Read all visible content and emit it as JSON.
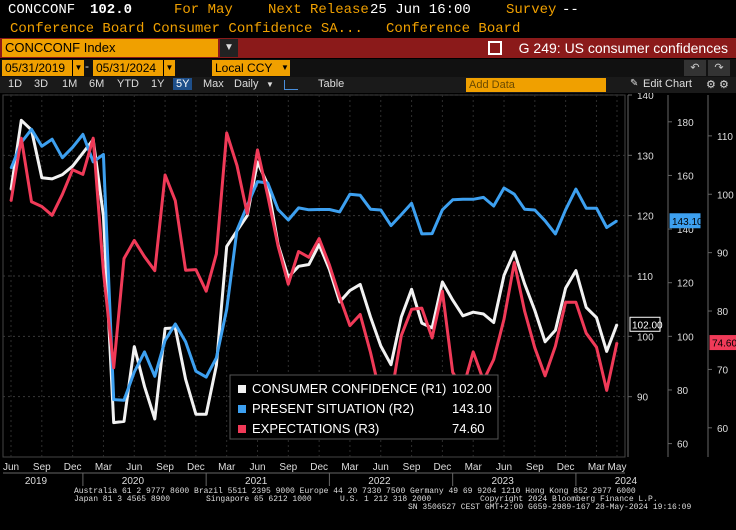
{
  "header": {
    "ticker": "CONCCONF",
    "last_value": "102.0",
    "for_label": "For May",
    "next_release_label": "Next Release",
    "next_release_value": "25 Jun 16:00",
    "survey_label": "Survey",
    "survey_value": "--",
    "series_name": "Conference Board Consumer Confidence SA...",
    "source": "Conference Board"
  },
  "security_bar": {
    "security": "CONCCONF Index",
    "graph_title": "G 249: US consumer confidences",
    "colors": {
      "bar": "#8b1a1a",
      "input": "#f0a000"
    }
  },
  "date_bar": {
    "start_date": "05/31/2019",
    "end_date": "05/31/2024",
    "currency": "Local CCY",
    "icons": [
      "undo-icon",
      "redo-icon"
    ]
  },
  "toolbar": {
    "ranges": [
      "1D",
      "3D",
      "1M",
      "6M",
      "YTD",
      "1Y",
      "5Y",
      "Max"
    ],
    "selected_range": "5Y",
    "frequency": "Daily",
    "table": "Table",
    "add_data": "Add Data",
    "edit_chart": "Edit Chart",
    "icons": [
      "chart-type-icon",
      "edit-icon",
      "gear-icon"
    ]
  },
  "chart_data": {
    "type": "line",
    "x_months": [
      "Jun 2019",
      "Jul 2019",
      "Aug 2019",
      "Sep 2019",
      "Oct 2019",
      "Nov 2019",
      "Dec 2019",
      "Jan 2020",
      "Feb 2020",
      "Mar 2020",
      "Apr 2020",
      "May 2020",
      "Jun 2020",
      "Jul 2020",
      "Aug 2020",
      "Sep 2020",
      "Oct 2020",
      "Nov 2020",
      "Dec 2020",
      "Jan 2021",
      "Feb 2021",
      "Mar 2021",
      "Apr 2021",
      "May 2021",
      "Jun 2021",
      "Jul 2021",
      "Aug 2021",
      "Sep 2021",
      "Oct 2021",
      "Nov 2021",
      "Dec 2021",
      "Jan 2022",
      "Feb 2022",
      "Mar 2022",
      "Apr 2022",
      "May 2022",
      "Jun 2022",
      "Jul 2022",
      "Aug 2022",
      "Sep 2022",
      "Oct 2022",
      "Nov 2022",
      "Dec 2022",
      "Jan 2023",
      "Feb 2023",
      "Mar 2023",
      "Apr 2023",
      "May 2023",
      "Jun 2023",
      "Jul 2023",
      "Aug 2023",
      "Sep 2023",
      "Oct 2023",
      "Nov 2023",
      "Dec 2023",
      "Jan 2024",
      "Feb 2024",
      "Mar 2024",
      "Apr 2024",
      "May 2024"
    ],
    "x_tick_labels": [
      "Jun",
      "Sep",
      "Dec",
      "Mar",
      "Jun",
      "Sep",
      "Dec",
      "Mar",
      "Jun",
      "Sep",
      "Dec",
      "Mar",
      "Jun",
      "Sep",
      "Dec",
      "Mar",
      "Jun",
      "Sep",
      "Dec",
      "Mar",
      "May"
    ],
    "year_labels": [
      "2019",
      "2020",
      "2021",
      "2022",
      "2023",
      "2024"
    ],
    "series": [
      {
        "name": "CONSUMER CONFIDENCE (R1)",
        "color": "#f2f2f2",
        "axis": "R1",
        "last": "102.00",
        "values": [
          124.3,
          135.8,
          134.2,
          126.3,
          126.1,
          126.8,
          128.2,
          130.4,
          132.6,
          120.0,
          85.7,
          85.9,
          98.3,
          91.7,
          86.3,
          101.3,
          101.4,
          92.9,
          87.1,
          87.1,
          95.2,
          114.9,
          117.5,
          120.0,
          128.9,
          125.1,
          115.2,
          109.8,
          111.6,
          111.9,
          115.2,
          111.1,
          105.7,
          107.6,
          108.6,
          103.2,
          98.4,
          95.3,
          103.2,
          107.8,
          102.2,
          101.4,
          109.0,
          106.0,
          103.4,
          104.0,
          103.7,
          102.3,
          110.1,
          114.0,
          108.7,
          104.3,
          99.1,
          101.0,
          108.0,
          110.9,
          104.8,
          103.1,
          97.5,
          102.0
        ]
      },
      {
        "name": "PRESENT SITUATION (R2)",
        "color": "#3da0f0",
        "axis": "R2",
        "last": "143.10",
        "values": [
          162.6,
          172.3,
          177.2,
          170.9,
          173.5,
          166.6,
          170.5,
          175.3,
          165.1,
          167.8,
          76.4,
          76.2,
          86.7,
          94.2,
          85.1,
          98.5,
          104.6,
          98.0,
          87.0,
          84.8,
          92.0,
          110.1,
          139.6,
          148.7,
          157.7,
          157.2,
          147.3,
          143.4,
          147.9,
          147.2,
          147.3,
          147.3,
          146.4,
          153.0,
          152.6,
          147.4,
          147.1,
          141.3,
          145.4,
          149.6,
          138.2,
          138.3,
          147.2,
          150.9,
          151.1,
          151.1,
          151.8,
          148.6,
          155.3,
          153.0,
          147.4,
          147.1,
          143.1,
          138.2,
          147.2,
          154.9,
          147.8,
          147.8,
          140.6,
          143.1
        ]
      },
      {
        "name": "EXPECTATIONS (R3)",
        "color": "#f03a58",
        "axis": "R3",
        "last": "74.60",
        "values": [
          98.8,
          109.6,
          98.7,
          97.9,
          96.4,
          100.0,
          104.2,
          103.4,
          109.6,
          86.8,
          70.3,
          89.0,
          92.1,
          89.3,
          86.9,
          103.3,
          98.9,
          87.0,
          87.1,
          83.4,
          89.8,
          110.5,
          104.9,
          96.7,
          107.6,
          99.7,
          91.1,
          84.6,
          90.2,
          89.2,
          92.4,
          87.9,
          82.4,
          77.5,
          79.4,
          72.9,
          65.3,
          65.3,
          75.8,
          80.3,
          80.5,
          75.4,
          83.4,
          69.5,
          66.7,
          73.0,
          68.1,
          71.7,
          78.6,
          88.3,
          80.0,
          73.7,
          68.9,
          74.0,
          81.5,
          81.5,
          76.2,
          73.8,
          66.4,
          74.6
        ]
      }
    ],
    "axes": {
      "R1": {
        "min": 80,
        "max": 140,
        "ticks": [
          90,
          100,
          110,
          120,
          130,
          140
        ]
      },
      "R2": {
        "min": 55,
        "max": 190,
        "ticks": [
          60,
          80,
          100,
          120,
          140,
          160,
          180
        ]
      },
      "R3": {
        "min": 55,
        "max": 117,
        "ticks": [
          60,
          70,
          80,
          90,
          100,
          110
        ]
      }
    },
    "legend_position": "bottom-center"
  },
  "footer": {
    "line1": "Australia 61 2 9777 8600 Brazil 5511 2395 9000 Europe 44 20 7330 7500 Germany 49 69 9204 1210 Hong Kong 852 2977 6000",
    "line2a": "Japan 81 3 4565 8900",
    "line2b": "Singapore 65 6212 1000",
    "line2c": "U.S. 1 212 318 2000",
    "line2d": "Copyright 2024 Bloomberg Finance L.P.",
    "line3": "SN 3506527 CEST GMT+2:00 G659-2989-167 28-May-2024 19:16:09"
  }
}
